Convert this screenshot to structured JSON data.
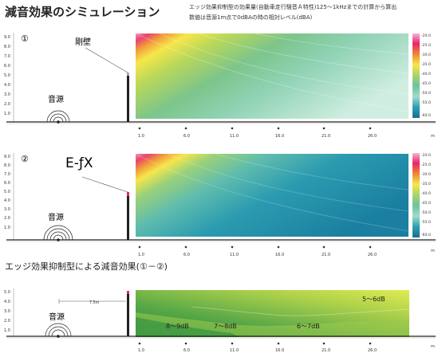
{
  "title": "減音効果のシミュレーション",
  "notes": [
    "エッジ効果抑制型の効果量(自動車走行騒音Ａ特性)125～1kHzまでの計算から算出",
    "数値は音源1m点で0dBAの時の相対レベル(dBA)"
  ],
  "panels": [
    {
      "number": "①",
      "wall_label": "剛壁",
      "source_label": "音源",
      "y_ticks": [
        "9.0",
        "8.0",
        "7.0",
        "6.0",
        "5.0",
        "4.0",
        "3.0",
        "2.0",
        "1.0"
      ],
      "x_ticks": [
        "1.0",
        "6.0",
        "11.0",
        "16.0",
        "21.0",
        "26.0"
      ],
      "x_unit": "m",
      "y_unit": "m",
      "colorbar": [
        "-20.0",
        "-25.0",
        "-30.0",
        "-35.0",
        "-40.0",
        "-45.0",
        "-50.0",
        "-55.0",
        "-60.0"
      ]
    },
    {
      "number": "②",
      "wall_label": "E-ƒX",
      "source_label": "音源",
      "y_ticks": [
        "9.0",
        "8.0",
        "7.0",
        "6.0",
        "5.0",
        "4.0",
        "3.0",
        "2.0",
        "1.0"
      ],
      "x_ticks": [
        "1.0",
        "6.0",
        "11.0",
        "16.0",
        "21.0",
        "26.0"
      ],
      "x_unit": "m",
      "y_unit": "m",
      "colorbar": [
        "-20.0",
        "-25.0",
        "-30.0",
        "-35.0",
        "-40.0",
        "-45.0",
        "-50.0",
        "-55.0",
        "-60.0"
      ]
    },
    {
      "heading": "エッジ効果抑制型による減音効果(①－②)",
      "source_label": "音源",
      "distance_label": "7.5m",
      "y_ticks": [
        "5.0",
        "4.0",
        "3.0",
        "2.0",
        "1.0"
      ],
      "x_ticks": [
        "1.0",
        "6.0",
        "11.0",
        "16.0",
        "21.0",
        "26.0"
      ],
      "x_unit": "m",
      "y_unit": "m",
      "zones": [
        "8～9dB",
        "7～8dB",
        "6～7dB",
        "5～6dB"
      ]
    }
  ],
  "colors": {
    "hot": "#e8246a",
    "yellow": "#f6e64a",
    "teal": "#1f8fa6",
    "green_dark": "#1f8a3c",
    "green_light": "#d8e84e"
  }
}
